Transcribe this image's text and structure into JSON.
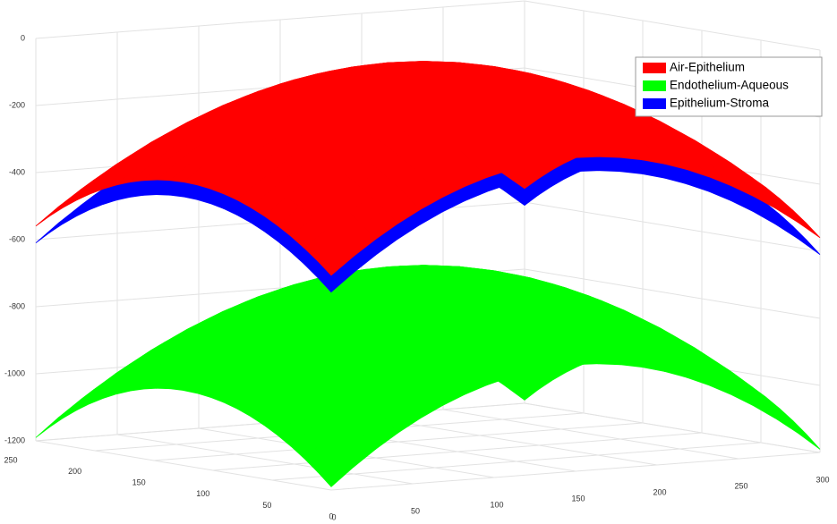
{
  "chart_data": {
    "type": "surface3d",
    "zticks": [
      0,
      -200,
      -400,
      -600,
      -800,
      -1000,
      -1200
    ],
    "xticks": [
      0,
      50,
      100,
      150,
      200,
      250,
      300
    ],
    "yticks": [
      0,
      50,
      100,
      150,
      200,
      250
    ],
    "xlim": [
      0,
      300
    ],
    "ylim": [
      0,
      250
    ],
    "zlim": [
      -1200,
      0
    ],
    "grid": true,
    "legend": "upper right",
    "series": [
      {
        "name": "Air-Epithelium",
        "color": "#ff0000"
      },
      {
        "name": "Endothelium-Aqueous",
        "color": "#00ff00"
      },
      {
        "name": "Epithelium-Stroma",
        "color": "#0000ff"
      }
    ]
  }
}
